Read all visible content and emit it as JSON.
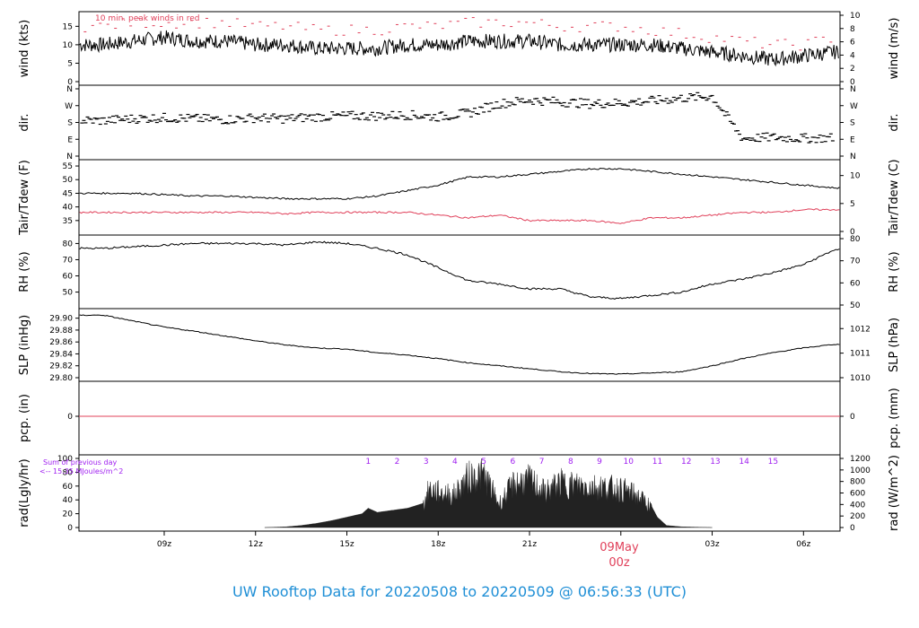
{
  "title": "UW Rooftop Data for 20220508  to  20220509 @ 06:56:33  (UTC)",
  "date_marker": {
    "day": "09May",
    "hour": "00z"
  },
  "colors": {
    "black": "#000000",
    "red": "#e0405a",
    "purple": "#a020f0",
    "title": "#1f8fd6"
  },
  "annotations": {
    "wind_note": "10 min. peak winds in red",
    "rad_sum_1": "Sum of previous day",
    "rad_sum_2": "<-- 15.35 MJoules/m^2"
  },
  "chart_data": [
    {
      "panel": "wind",
      "type": "line",
      "ylabel_left": "wind (kts)",
      "ylabel_right": "wind (m/s)",
      "ylim": [
        0,
        18
      ],
      "yticks_left": [
        "0",
        "5",
        "10",
        "15"
      ],
      "yticks_right": [
        "0",
        "2",
        "4",
        "6",
        "8",
        "10"
      ],
      "series": [
        {
          "name": "",
          "color": "#000000",
          "x": [
            7,
            8,
            9,
            10,
            11,
            12,
            13,
            14,
            15,
            16,
            17,
            18,
            19,
            20,
            21,
            22,
            23,
            24,
            25,
            26,
            27,
            28,
            29,
            30,
            31
          ],
          "values": [
            10,
            11,
            12,
            11,
            11,
            10,
            10,
            9,
            9,
            9,
            10,
            10,
            11,
            11,
            11,
            10,
            10,
            10,
            10,
            9,
            8,
            7,
            6,
            7,
            8
          ]
        },
        {
          "name": "10 min. peak winds in red",
          "color": "#e0405a",
          "x": [
            7,
            8,
            9,
            10,
            11,
            12,
            13,
            14,
            15,
            16,
            17,
            18,
            19,
            20,
            21,
            22,
            23,
            24,
            25,
            26,
            27,
            28,
            29,
            30,
            31
          ],
          "values": [
            15,
            16,
            16,
            16,
            16,
            15,
            15,
            14,
            14,
            14,
            15,
            15,
            16,
            16,
            16,
            15,
            15,
            15,
            14,
            13,
            12,
            11,
            10,
            10,
            12
          ]
        }
      ]
    },
    {
      "panel": "dir",
      "type": "scatter",
      "ylabel_left": "dir.",
      "ylabel_right": "dir.",
      "yticks_left": [
        "N",
        "E",
        "S",
        "W",
        "N"
      ],
      "yticks_right": [
        "N",
        "E",
        "S",
        "W",
        "N"
      ],
      "ylim": [
        0,
        360
      ],
      "series": [
        {
          "name": "",
          "color": "#000000",
          "x": [
            7,
            8,
            9,
            10,
            11,
            12,
            13,
            14,
            15,
            16,
            17,
            18,
            19,
            20,
            21,
            22,
            23,
            24,
            25,
            26,
            27,
            28,
            29,
            30,
            31
          ],
          "values": [
            190,
            200,
            205,
            200,
            195,
            205,
            200,
            210,
            215,
            215,
            220,
            210,
            230,
            280,
            300,
            290,
            280,
            285,
            295,
            310,
            320,
            95,
            100,
            95,
            98
          ]
        }
      ]
    },
    {
      "panel": "temp",
      "type": "line",
      "ylabel_left": "Tair/Tdew (F)",
      "ylabel_right": "Tair/Tdew (C)",
      "ylim": [
        31,
        56
      ],
      "yticks_left": [
        "35",
        "40",
        "45",
        "50",
        "55"
      ],
      "yticks_right": [
        "0",
        "5",
        "10"
      ],
      "series": [
        {
          "name": "Tair",
          "color": "#000000",
          "x": [
            7,
            8,
            9,
            10,
            11,
            12,
            13,
            14,
            15,
            16,
            17,
            18,
            19,
            20,
            21,
            22,
            23,
            24,
            25,
            26,
            27,
            28,
            29,
            30,
            31
          ],
          "values": [
            45,
            45,
            44.5,
            44,
            44,
            43.5,
            43,
            43,
            43,
            44,
            46,
            48,
            51,
            51,
            52,
            53,
            54,
            54,
            53,
            52,
            51,
            50,
            49,
            48,
            47
          ]
        },
        {
          "name": "Tdew",
          "color": "#e0405a",
          "x": [
            7,
            8,
            9,
            10,
            11,
            12,
            13,
            14,
            15,
            16,
            17,
            18,
            19,
            20,
            21,
            22,
            23,
            24,
            25,
            26,
            27,
            28,
            29,
            30,
            31
          ],
          "values": [
            38,
            38,
            38,
            38,
            38,
            38,
            37.5,
            38,
            38,
            38,
            38,
            37,
            36,
            37,
            35,
            35,
            35,
            34,
            36,
            36,
            37,
            38,
            38,
            39,
            39
          ]
        }
      ]
    },
    {
      "panel": "rh",
      "type": "line",
      "ylabel_left": "RH (%)",
      "ylabel_right": "RH (%)",
      "ylim": [
        42,
        83
      ],
      "yticks_left": [
        "50",
        "60",
        "70",
        "80"
      ],
      "yticks_right": [
        "50",
        "60",
        "70",
        "80"
      ],
      "series": [
        {
          "name": "",
          "color": "#000000",
          "x": [
            7,
            8,
            9,
            10,
            11,
            12,
            13,
            14,
            15,
            16,
            17,
            18,
            19,
            20,
            21,
            22,
            23,
            24,
            25,
            26,
            27,
            28,
            29,
            30,
            31
          ],
          "values": [
            77,
            78,
            79,
            80,
            80,
            80,
            79,
            81,
            80,
            77,
            73,
            65,
            57,
            55,
            52,
            52,
            47,
            46,
            48,
            50,
            55,
            58,
            62,
            67,
            76
          ]
        }
      ]
    },
    {
      "panel": "slp",
      "type": "line",
      "ylabel_left": "SLP (inHg)",
      "ylabel_right": "SLP (hPa)",
      "ylim": [
        29.8,
        29.91
      ],
      "yticks_left": [
        "29.80",
        "29.82",
        "29.84",
        "29.86",
        "29.88",
        "29.90"
      ],
      "yticks_right": [
        "1010",
        "1011",
        "1012"
      ],
      "series": [
        {
          "name": "",
          "color": "#000000",
          "x": [
            7,
            8,
            9,
            10,
            11,
            12,
            13,
            14,
            15,
            16,
            17,
            18,
            19,
            20,
            21,
            22,
            23,
            24,
            25,
            26,
            27,
            28,
            29,
            30,
            31
          ],
          "values": [
            29.905,
            29.895,
            29.885,
            29.878,
            29.87,
            29.862,
            29.855,
            29.85,
            29.848,
            29.842,
            29.838,
            29.832,
            29.825,
            29.82,
            29.815,
            29.81,
            29.807,
            29.806,
            29.808,
            29.81,
            29.82,
            29.832,
            29.842,
            29.85,
            29.856
          ]
        }
      ]
    },
    {
      "panel": "pcp",
      "type": "line",
      "ylabel_left": "pcp. (in)",
      "ylabel_right": "pcp. (mm)",
      "yticks_left": [
        "0"
      ],
      "yticks_right": [
        "0"
      ],
      "series": [
        {
          "name": "",
          "color": "#e0405a",
          "x": [
            6.2,
            31.2
          ],
          "values": [
            0,
            0
          ]
        }
      ]
    },
    {
      "panel": "rad",
      "type": "area",
      "ylabel_left": "rad(Lgly/hr)",
      "ylabel_right": "rad (W/m^2)",
      "ylim": [
        0,
        100
      ],
      "yticks_left": [
        "0",
        "20",
        "40",
        "60",
        "80",
        "100"
      ],
      "yticks_right": [
        "0",
        "200",
        "400",
        "600",
        "800",
        "1000",
        "1200"
      ],
      "hour_marks": [
        "1",
        "2",
        "3",
        "4",
        "5",
        "6",
        "7",
        "8",
        "9",
        "10",
        "11",
        "12",
        "13",
        "14",
        "15"
      ],
      "series": [
        {
          "name": "",
          "color": "#222222",
          "x": [
            12.3,
            13,
            13.5,
            14,
            14.5,
            15,
            15.5,
            15.7,
            16,
            16.5,
            17,
            17.5,
            17.7,
            18,
            18.5,
            19,
            19.5,
            20,
            20.5,
            21,
            21.5,
            22,
            22.5,
            23,
            23.5,
            24,
            24.5,
            24.9,
            25.2,
            25.5,
            26,
            27
          ],
          "values": [
            0,
            1,
            3,
            6,
            10,
            15,
            20,
            28,
            22,
            25,
            28,
            35,
            65,
            60,
            55,
            85,
            90,
            40,
            75,
            80,
            60,
            75,
            72,
            70,
            68,
            65,
            55,
            40,
            15,
            3,
            1,
            0
          ]
        }
      ]
    }
  ],
  "x_axis": {
    "tick_labels": [
      "09z",
      "12z",
      "15z",
      "18z",
      "21z",
      "00z",
      "03z",
      "06z"
    ]
  }
}
